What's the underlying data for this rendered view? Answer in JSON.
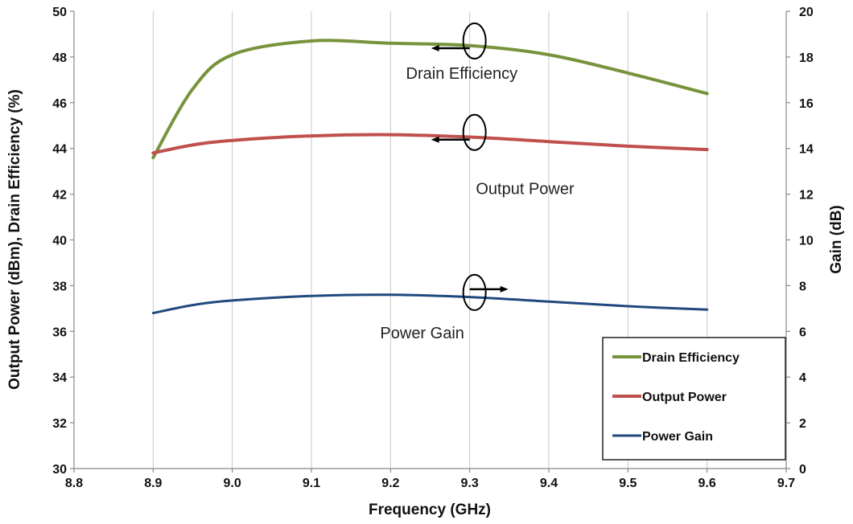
{
  "chart_data": {
    "type": "line",
    "xlabel": "Frequency (GHz)",
    "ylabel_left": "Output Power (dBm), Drain  Efficiency (%)",
    "ylabel_right": "Gain (dB)",
    "xlim": [
      8.8,
      9.7
    ],
    "x_ticks": [
      "8.8",
      "8.9",
      "9.0",
      "9.1",
      "9.2",
      "9.3",
      "9.4",
      "9.5",
      "9.6",
      "9.7"
    ],
    "ylim_left": [
      30,
      50
    ],
    "y_ticks_left": [
      "30",
      "32",
      "34",
      "36",
      "38",
      "40",
      "42",
      "44",
      "46",
      "48",
      "50"
    ],
    "ylim_right": [
      0,
      20
    ],
    "y_ticks_right": [
      "0",
      "2",
      "4",
      "6",
      "8",
      "10",
      "12",
      "14",
      "16",
      "18",
      "20"
    ],
    "grid": "vertical",
    "legend_position": "bottom-right",
    "series": [
      {
        "name": "Drain Efficiency",
        "axis": "left",
        "color": "#77933c",
        "x": [
          8.9,
          8.95,
          9.0,
          9.1,
          9.2,
          9.3,
          9.4,
          9.5,
          9.6
        ],
        "y": [
          43.6,
          46.6,
          48.1,
          48.7,
          48.6,
          48.5,
          48.1,
          47.3,
          46.4
        ]
      },
      {
        "name": "Output Power",
        "axis": "left",
        "color": "#c0504d",
        "x": [
          8.9,
          8.95,
          9.0,
          9.1,
          9.2,
          9.3,
          9.4,
          9.5,
          9.6
        ],
        "y": [
          43.8,
          44.15,
          44.35,
          44.55,
          44.6,
          44.5,
          44.3,
          44.1,
          43.95
        ]
      },
      {
        "name": "Power Gain",
        "axis": "right",
        "color": "#1f497d",
        "x": [
          8.9,
          8.95,
          9.0,
          9.1,
          9.2,
          9.3,
          9.4,
          9.5,
          9.6
        ],
        "y": [
          6.8,
          7.15,
          7.35,
          7.55,
          7.6,
          7.5,
          7.3,
          7.1,
          6.95
        ]
      }
    ],
    "annotations": [
      {
        "text": "Drain Efficiency",
        "x": 9.29,
        "y_left": 47.05,
        "marker_x": 9.3,
        "marker_y_left": 48.7,
        "arrow": "left"
      },
      {
        "text": "Output Power",
        "x": 9.37,
        "y_left": 42.0,
        "marker_x": 9.3,
        "marker_y_left": 44.7,
        "arrow": "left"
      },
      {
        "text": "Power Gain",
        "x": 9.24,
        "y_left": 35.7,
        "marker_x": 9.3,
        "marker_y_left": 37.7,
        "arrow": "right"
      }
    ]
  }
}
